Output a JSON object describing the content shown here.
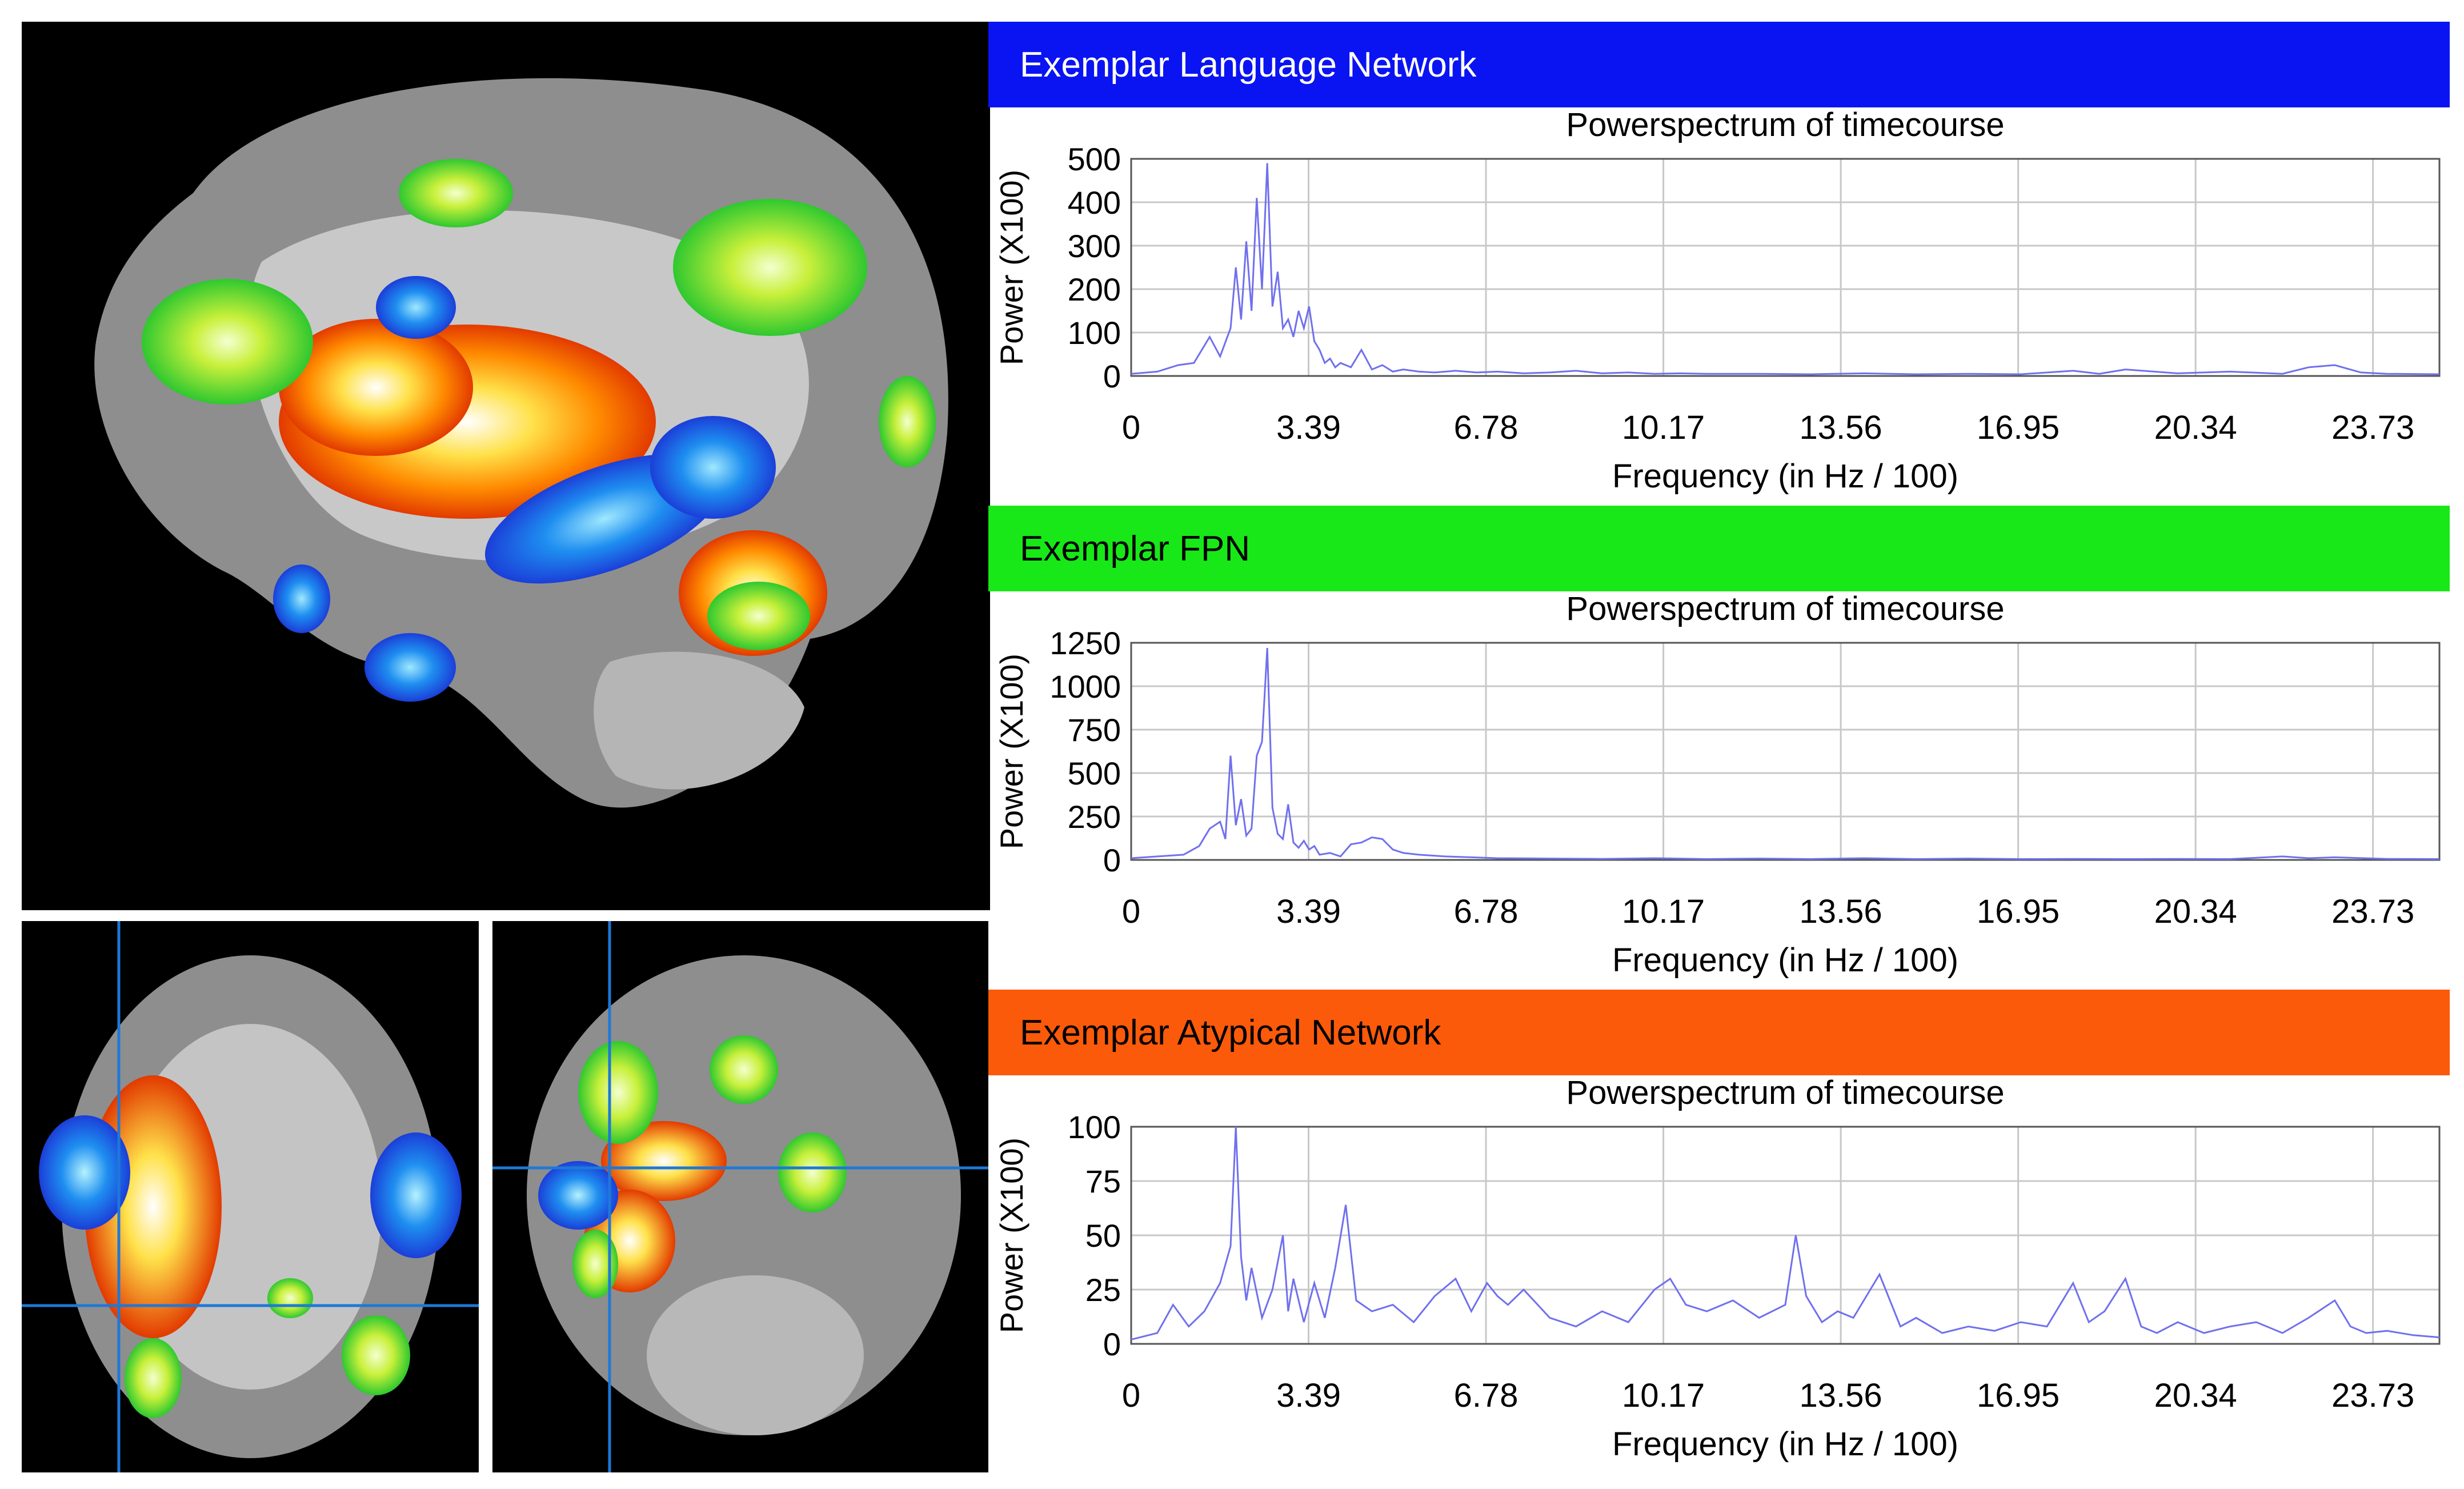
{
  "panels": [
    {
      "header": "Exemplar Language Network",
      "header_color": "#0a14f2",
      "header_text_color": "#ffffff"
    },
    {
      "header": "Exemplar FPN",
      "header_color": "#18e818",
      "header_text_color": "#000000"
    },
    {
      "header": "Exemplar Atypical Network",
      "header_color": "#fb5a0a",
      "header_text_color": "#000000"
    }
  ],
  "chart_data": [
    {
      "type": "line",
      "title": "Powerspectrum of timecourse",
      "xlabel": "Frequency (in Hz / 100)",
      "ylabel": "Power (X100)",
      "x_ticks": [
        "0",
        "3.39",
        "6.78",
        "10.17",
        "13.56",
        "16.95",
        "20.34",
        "23.73"
      ],
      "y_ticks": [
        "0",
        "100",
        "200",
        "300",
        "400",
        "500"
      ],
      "xlim": [
        0,
        25
      ],
      "ylim": [
        0,
        500
      ],
      "grid": true,
      "line_color": "#7070ee",
      "series": [
        {
          "x": [
            0,
            0.5,
            0.9,
            1.2,
            1.5,
            1.7,
            1.9,
            2.0,
            2.1,
            2.2,
            2.3,
            2.4,
            2.5,
            2.6,
            2.7,
            2.8,
            2.9,
            3.0,
            3.1,
            3.2,
            3.3,
            3.4,
            3.5,
            3.6,
            3.7,
            3.8,
            3.9,
            4.0,
            4.2,
            4.4,
            4.6,
            4.8,
            5.0,
            5.2,
            5.5,
            5.8,
            6.2,
            6.6,
            7.0,
            7.5,
            8.0,
            8.5,
            9.0,
            9.5,
            10.0,
            10.5,
            11.0,
            12.0,
            13.0,
            14.0,
            15.0,
            16.0,
            17.0,
            18.0,
            18.5,
            19.0,
            20.0,
            21.0,
            22.0,
            22.5,
            23.0,
            23.5,
            24.0,
            25.0
          ],
          "y": [
            5,
            10,
            25,
            30,
            90,
            45,
            110,
            250,
            130,
            310,
            150,
            410,
            200,
            490,
            160,
            240,
            110,
            130,
            90,
            150,
            110,
            160,
            80,
            60,
            30,
            40,
            20,
            30,
            20,
            60,
            15,
            25,
            10,
            15,
            10,
            8,
            12,
            8,
            10,
            6,
            8,
            12,
            6,
            8,
            5,
            6,
            5,
            5,
            4,
            6,
            4,
            5,
            4,
            12,
            5,
            15,
            6,
            10,
            5,
            20,
            25,
            8,
            5,
            4
          ]
        }
      ]
    },
    {
      "type": "line",
      "title": "Powerspectrum of timecourse",
      "xlabel": "Frequency (in Hz / 100)",
      "ylabel": "Power (X100)",
      "x_ticks": [
        "0",
        "3.39",
        "6.78",
        "10.17",
        "13.56",
        "16.95",
        "20.34",
        "23.73"
      ],
      "y_ticks": [
        "0",
        "250",
        "500",
        "750",
        "1000",
        "1250"
      ],
      "xlim": [
        0,
        25
      ],
      "ylim": [
        0,
        1250
      ],
      "grid": true,
      "line_color": "#7070ee",
      "series": [
        {
          "x": [
            0,
            0.5,
            1.0,
            1.3,
            1.5,
            1.7,
            1.8,
            1.9,
            2.0,
            2.1,
            2.2,
            2.3,
            2.4,
            2.5,
            2.6,
            2.7,
            2.8,
            2.9,
            3.0,
            3.1,
            3.2,
            3.3,
            3.4,
            3.5,
            3.6,
            3.8,
            4.0,
            4.2,
            4.4,
            4.6,
            4.8,
            5.0,
            5.2,
            5.5,
            6.0,
            6.5,
            7.0,
            8.0,
            9.0,
            10.0,
            11.0,
            12.0,
            13.0,
            14.0,
            15.0,
            16.0,
            17.0,
            18.0,
            19.0,
            20.0,
            21.0,
            22.0,
            22.5,
            23.0,
            24.0,
            25.0
          ],
          "y": [
            10,
            20,
            30,
            80,
            180,
            220,
            120,
            600,
            200,
            350,
            140,
            180,
            600,
            680,
            1220,
            300,
            150,
            120,
            320,
            100,
            70,
            110,
            60,
            80,
            30,
            40,
            20,
            90,
            100,
            130,
            120,
            60,
            40,
            30,
            20,
            15,
            10,
            8,
            6,
            10,
            5,
            8,
            5,
            10,
            5,
            8,
            5,
            6,
            5,
            6,
            5,
            20,
            10,
            15,
            6,
            5
          ]
        }
      ]
    },
    {
      "type": "line",
      "title": "Powerspectrum of timecourse",
      "xlabel": "Frequency (in Hz / 100)",
      "ylabel": "Power (X100)",
      "x_ticks": [
        "0",
        "3.39",
        "6.78",
        "10.17",
        "13.56",
        "16.95",
        "20.34",
        "23.73"
      ],
      "y_ticks": [
        "0",
        "25",
        "50",
        "75",
        "100"
      ],
      "xlim": [
        0,
        25
      ],
      "ylim": [
        0,
        100
      ],
      "grid": true,
      "line_color": "#7070ee",
      "series": [
        {
          "x": [
            0,
            0.5,
            0.8,
            1.1,
            1.4,
            1.7,
            1.9,
            2.0,
            2.1,
            2.2,
            2.3,
            2.5,
            2.7,
            2.9,
            3.0,
            3.1,
            3.3,
            3.5,
            3.7,
            3.9,
            4.1,
            4.3,
            4.6,
            5.0,
            5.4,
            5.8,
            6.2,
            6.5,
            6.8,
            7.0,
            7.2,
            7.5,
            8.0,
            8.5,
            9.0,
            9.5,
            10.0,
            10.3,
            10.6,
            11.0,
            11.5,
            12.0,
            12.5,
            12.7,
            12.9,
            13.2,
            13.5,
            13.8,
            14.0,
            14.3,
            14.7,
            15.0,
            15.5,
            16.0,
            16.5,
            17.0,
            17.5,
            18.0,
            18.3,
            18.6,
            19.0,
            19.3,
            19.6,
            20.0,
            20.5,
            21.0,
            21.5,
            22.0,
            22.5,
            23.0,
            23.3,
            23.6,
            24.0,
            24.5,
            25.0
          ],
          "y": [
            2,
            5,
            18,
            8,
            15,
            28,
            45,
            100,
            40,
            20,
            35,
            12,
            25,
            50,
            15,
            30,
            10,
            28,
            12,
            35,
            64,
            20,
            15,
            18,
            10,
            22,
            30,
            15,
            28,
            22,
            18,
            25,
            12,
            8,
            15,
            10,
            25,
            30,
            18,
            15,
            20,
            12,
            18,
            50,
            22,
            10,
            15,
            12,
            20,
            32,
            8,
            12,
            5,
            8,
            6,
            10,
            8,
            28,
            10,
            15,
            30,
            8,
            5,
            10,
            5,
            8,
            10,
            5,
            12,
            20,
            8,
            5,
            6,
            4,
            3
          ]
        }
      ]
    }
  ]
}
